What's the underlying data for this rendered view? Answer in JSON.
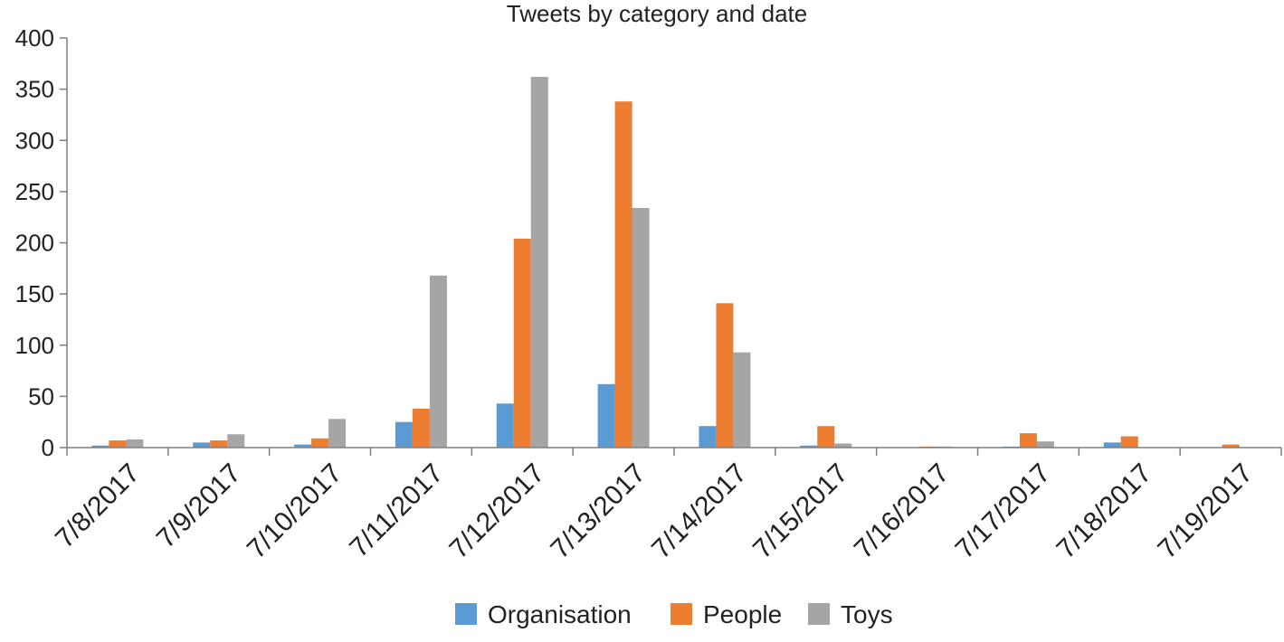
{
  "chart_data": {
    "type": "bar",
    "title": "Tweets by category and date",
    "xlabel": "",
    "ylabel": "",
    "ylim": [
      0,
      400
    ],
    "yticks": [
      0,
      50,
      100,
      150,
      200,
      250,
      300,
      350,
      400
    ],
    "grid": false,
    "legend_position": "bottom",
    "categories": [
      "7/8/2017",
      "7/9/2017",
      "7/10/2017",
      "7/11/2017",
      "7/12/2017",
      "7/13/2017",
      "7/14/2017",
      "7/15/2017",
      "7/16/2017",
      "7/17/2017",
      "7/18/2017",
      "7/19/2017"
    ],
    "series": [
      {
        "name": "Organisation",
        "color": "#5B9BD5",
        "values": [
          2,
          5,
          3,
          25,
          43,
          62,
          21,
          2,
          0,
          1,
          5,
          0
        ]
      },
      {
        "name": "People",
        "color": "#ED7D31",
        "values": [
          7,
          7,
          9,
          38,
          204,
          338,
          141,
          21,
          1,
          14,
          11,
          3
        ]
      },
      {
        "name": "Toys",
        "color": "#A5A5A5",
        "values": [
          8,
          13,
          28,
          168,
          362,
          234,
          93,
          4,
          1,
          6,
          0,
          0
        ]
      }
    ]
  }
}
